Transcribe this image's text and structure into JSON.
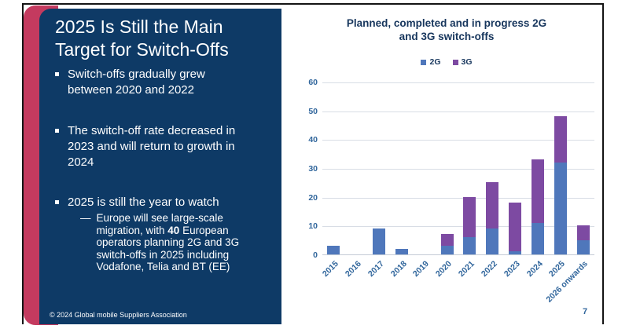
{
  "slide": {
    "title": "2025 Is Still the Main Target for Switch-Offs",
    "bullets": [
      "Switch-offs gradually grew between 2020 and 2022",
      "The switch-off rate decreased in 2023 and will return to growth in 2024",
      "2025 is still the year to watch"
    ],
    "sub_bullet": {
      "dash": "—",
      "pre": "Europe will see large-scale migration, with ",
      "bold": "40",
      "post": " European operators planning 2G and 3G switch-offs in 2025 including Vodafone, Telia and BT (EE)"
    },
    "footer": "© 2024 Global mobile Suppliers Association",
    "page_number": "7"
  },
  "colors": {
    "panel_navy": "#0e3a66",
    "stripe_red": "#c43a5f",
    "chart_title_navy": "#17365d",
    "chart_text_blue": "#31669c",
    "bar_2g_blue": "#4f77bb",
    "bar_3g_purple": "#7d4aa2"
  },
  "chart_data": {
    "type": "bar",
    "stacked": true,
    "title": "Planned, completed and in progress 2G and 3G switch-offs",
    "title_lines": [
      "Planned, completed and in progress 2G",
      "and 3G switch-offs"
    ],
    "categories": [
      "2015",
      "2016",
      "2017",
      "2018",
      "2019",
      "2020",
      "2021",
      "2022",
      "2023",
      "2024",
      "2025",
      "2026 onwards"
    ],
    "series": [
      {
        "name": "2G",
        "color": "#4f77bb",
        "values": [
          3,
          0,
          9,
          2,
          0,
          3,
          6,
          9,
          1,
          11,
          32,
          5
        ]
      },
      {
        "name": "3G",
        "color": "#7d4aa2",
        "values": [
          0,
          0,
          0,
          0,
          0,
          4,
          14,
          16,
          17,
          22,
          16,
          5
        ]
      }
    ],
    "totals": [
      3,
      0,
      9,
      2,
      0,
      7,
      20,
      25,
      18,
      33,
      48,
      10
    ],
    "xlabel": "",
    "ylabel": "",
    "ylim": [
      0,
      60
    ],
    "y_ticks": [
      0,
      10,
      20,
      30,
      40,
      50,
      60
    ],
    "grid": true,
    "legend_position": "top"
  }
}
